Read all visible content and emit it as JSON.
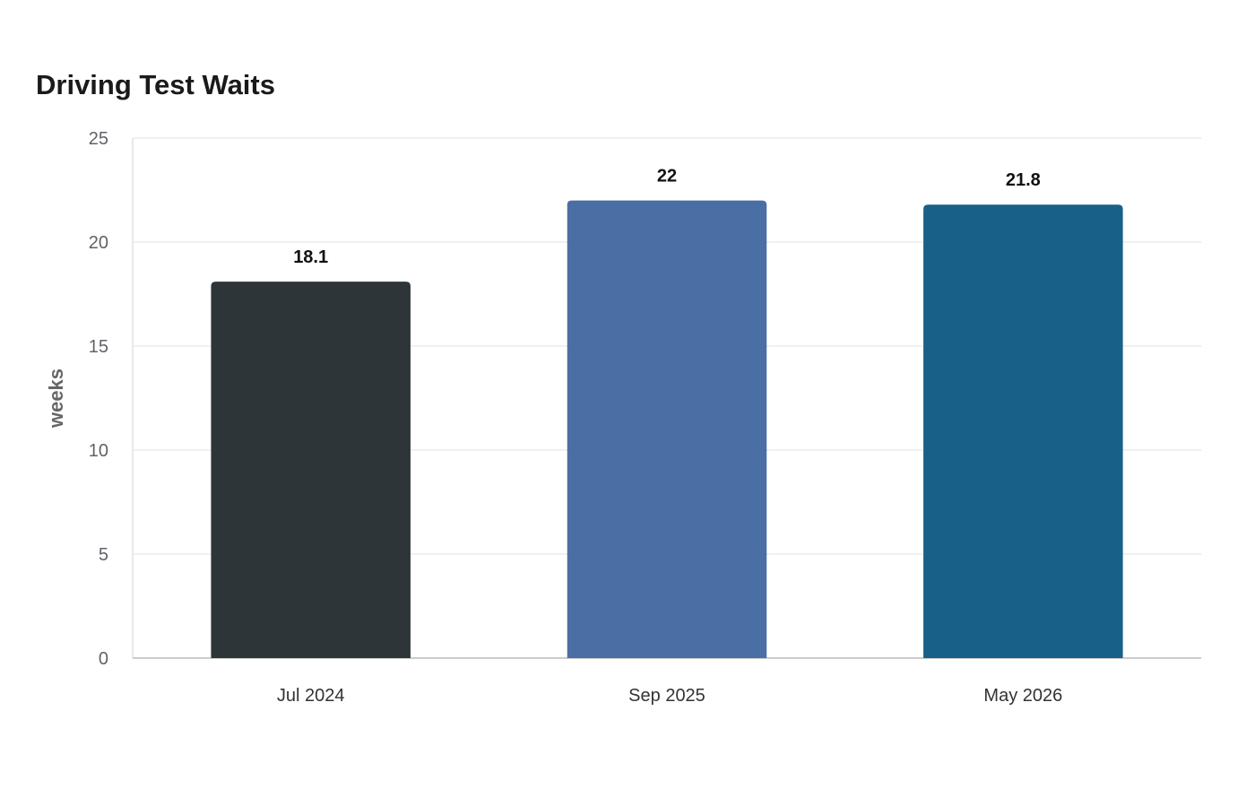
{
  "chart_data": {
    "type": "bar",
    "title": "Driving Test Waits",
    "xlabel": "",
    "ylabel": "weeks",
    "categories": [
      "Jul 2024",
      "Sep 2025",
      "May 2026"
    ],
    "values": [
      18.1,
      22,
      21.8
    ],
    "data_labels": [
      "18.1",
      "22",
      "21.8"
    ],
    "colors": [
      "#2e3538",
      "#4a6fa5",
      "#186088"
    ],
    "ylim": [
      0,
      25
    ],
    "yticks": [
      0,
      5,
      10,
      15,
      20,
      25
    ],
    "grid": true,
    "legend": "none"
  }
}
